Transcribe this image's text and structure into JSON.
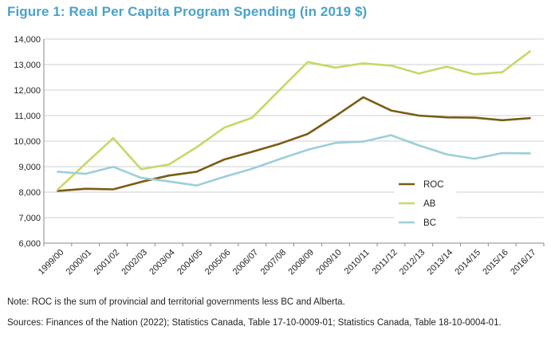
{
  "title": "Figure 1:  Real Per Capita Program Spending (in 2019 $)",
  "note": "Note: ROC is the sum of provincial and territorial governments less BC and Alberta.",
  "sources": "Sources: Finances of the Nation (2022); Statistics Canada, Table 17-10-0009-01; Statistics Canada, Table 18-10-0004-01.",
  "chart_data": {
    "type": "line",
    "title": "Figure 1:  Real Per Capita Program Spending (in 2019 $)",
    "xlabel": "",
    "ylabel": "",
    "ylim": [
      6000,
      14000
    ],
    "yticks": [
      "6,000",
      "7,000",
      "8,000",
      "9,000",
      "10,000",
      "11,000",
      "12,000",
      "13,000",
      "14,000"
    ],
    "grid": true,
    "legend_position": "bottom-right",
    "categories": [
      "1999/00",
      "2000/01",
      "2001/02",
      "2002/03",
      "2003/04",
      "2004/05",
      "2005/06",
      "2006/07",
      "2007/08",
      "2008/09",
      "2009/10",
      "2010/11",
      "2011/12",
      "2012/13",
      "2013/14",
      "2014/15",
      "2015/16",
      "2016/17"
    ],
    "series": [
      {
        "name": "ROC",
        "color": "#7a5c14",
        "values": [
          8050,
          8130,
          8110,
          8400,
          8650,
          8800,
          9280,
          9580,
          9900,
          10280,
          10980,
          11720,
          11200,
          11000,
          10930,
          10920,
          10820,
          10900
        ]
      },
      {
        "name": "AB",
        "color": "#c6d866",
        "values": [
          8100,
          9120,
          10120,
          8900,
          9080,
          9760,
          10530,
          10920,
          12020,
          13100,
          12880,
          13050,
          12960,
          12650,
          12920,
          12620,
          12700,
          13520
        ]
      },
      {
        "name": "BC",
        "color": "#9bcfd8",
        "values": [
          8800,
          8720,
          8990,
          8560,
          8420,
          8260,
          8600,
          8920,
          9300,
          9660,
          9930,
          9980,
          10230,
          9830,
          9480,
          9310,
          9530,
          9520
        ]
      }
    ]
  }
}
